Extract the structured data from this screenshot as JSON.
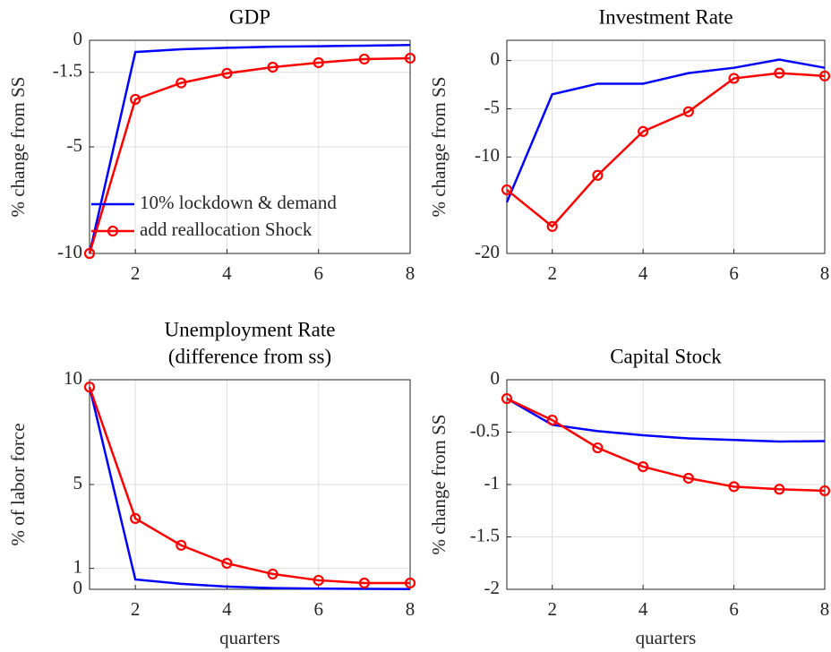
{
  "chart_data": [
    {
      "type": "line",
      "title": [
        "GDP"
      ],
      "ylabel": "% change from SS",
      "x": [
        1,
        2,
        3,
        4,
        5,
        6,
        7,
        8
      ],
      "xlim": [
        1,
        8
      ],
      "xticks": [
        2,
        4,
        6,
        8
      ],
      "ylim": [
        -10,
        0
      ],
      "yticks": [
        -10,
        -5,
        -1.5,
        0
      ],
      "grid": true,
      "legend": "southwest",
      "series": [
        {
          "name": "10% lockdown & demand",
          "color": "#0000ff",
          "marker": false,
          "values": [
            -10,
            -0.55,
            -0.42,
            -0.35,
            -0.3,
            -0.28,
            -0.25,
            -0.22
          ]
        },
        {
          "name": "add reallocation Shock",
          "color": "#ff0000",
          "marker": true,
          "values": [
            -10,
            -2.77,
            -2.0,
            -1.55,
            -1.26,
            -1.05,
            -0.88,
            -0.84
          ]
        }
      ]
    },
    {
      "type": "line",
      "title": [
        "Investment Rate"
      ],
      "ylabel": "% change from SS",
      "x": [
        1,
        2,
        3,
        4,
        5,
        6,
        7,
        8
      ],
      "xlim": [
        1,
        8
      ],
      "xticks": [
        2,
        4,
        6,
        8
      ],
      "ylim": [
        -20,
        2.1
      ],
      "yticks": [
        -20,
        -10,
        -5,
        0
      ],
      "grid": true,
      "series": [
        {
          "color": "#0000ff",
          "marker": false,
          "values": [
            -14.7,
            -3.5,
            -2.4,
            -2.4,
            -1.3,
            -0.75,
            0.1,
            -0.75
          ]
        },
        {
          "color": "#ff0000",
          "marker": true,
          "values": [
            -13.4,
            -17.2,
            -11.9,
            -7.35,
            -5.3,
            -1.85,
            -1.3,
            -1.6
          ]
        }
      ]
    },
    {
      "type": "line",
      "title": [
        "Unemployment Rate",
        "(difference from ss)"
      ],
      "ylabel": "% of labor force",
      "xlabel": "quarters",
      "x": [
        1,
        2,
        3,
        4,
        5,
        6,
        7,
        8
      ],
      "xlim": [
        1,
        8
      ],
      "xticks": [
        2,
        4,
        6,
        8
      ],
      "ylim": [
        0,
        10
      ],
      "yticks": [
        0,
        1,
        5,
        10
      ],
      "grid": true,
      "series": [
        {
          "color": "#0000ff",
          "marker": false,
          "values": [
            9.65,
            0.47,
            0.26,
            0.13,
            0.06,
            0.03,
            0.02,
            0.01
          ]
        },
        {
          "color": "#ff0000",
          "marker": true,
          "values": [
            9.65,
            3.38,
            2.1,
            1.24,
            0.73,
            0.43,
            0.3,
            0.3
          ]
        }
      ]
    },
    {
      "type": "line",
      "title": [
        "Capital Stock"
      ],
      "ylabel": "% change from SS",
      "xlabel": "quarters",
      "x": [
        1,
        2,
        3,
        4,
        5,
        6,
        7,
        8
      ],
      "xlim": [
        1,
        8
      ],
      "xticks": [
        2,
        4,
        6,
        8
      ],
      "ylim": [
        -2,
        0
      ],
      "yticks": [
        -2,
        -1.5,
        -1,
        -0.5,
        0
      ],
      "grid": true,
      "series": [
        {
          "color": "#0000ff",
          "marker": false,
          "values": [
            -0.18,
            -0.43,
            -0.49,
            -0.53,
            -0.56,
            -0.575,
            -0.59,
            -0.585
          ]
        },
        {
          "color": "#ff0000",
          "marker": true,
          "values": [
            -0.18,
            -0.385,
            -0.65,
            -0.83,
            -0.94,
            -1.02,
            -1.045,
            -1.06
          ]
        }
      ]
    }
  ]
}
